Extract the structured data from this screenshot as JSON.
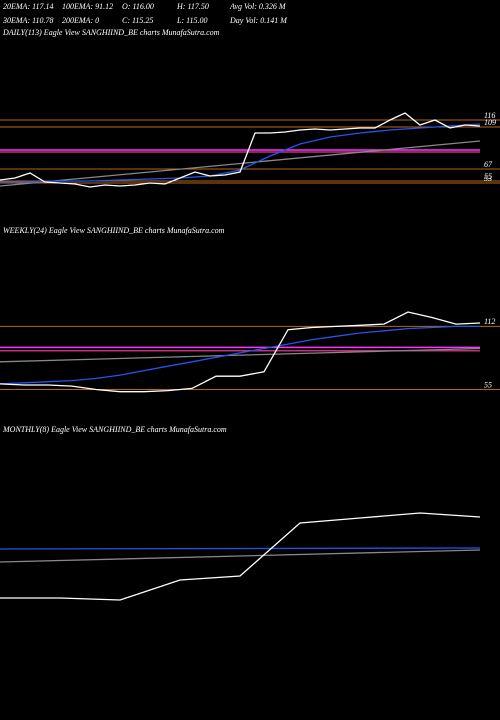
{
  "header": [
    "20EMA: 117.14",
    "100EMA: 91.12",
    "O: 116.00",
    "H: 117.50",
    "Avg Vol: 0.326 M",
    "30EMA: 110.78",
    "200EMA: 0",
    "C: 115.25",
    "L: 115.00",
    "Day Vol: 0.141 M"
  ],
  "chart_data": [
    {
      "type": "line",
      "title": "DAILY(113) Eagle  View  SANGHIIND_BE charts MunafaSutra.com",
      "ylim": [
        41,
        196
      ],
      "levels": [
        {
          "value": 116,
          "color": "#b8651a"
        },
        {
          "value": 109,
          "color": "#b8651a"
        },
        {
          "value": 67,
          "color": "#b8651a"
        },
        {
          "value": 55,
          "color": "#b8651a"
        },
        {
          "value": 53,
          "color": "#b8651a"
        }
      ],
      "bands": [
        {
          "value": 86,
          "color": "#ff33ff"
        },
        {
          "value": 84,
          "color": "#c0307a"
        }
      ],
      "series": [
        {
          "color": "#888888",
          "values": [
            50,
            95
          ]
        },
        {
          "color": "#2255ee",
          "values": [
            54,
            54,
            55,
            55,
            56,
            57,
            58,
            60,
            66,
            80,
            92,
            99,
            103,
            106,
            108,
            110,
            112
          ]
        },
        {
          "color": "#ffffff",
          "values": [
            56,
            58,
            63,
            54,
            53,
            52,
            49,
            51,
            50,
            51,
            53,
            52,
            58,
            64,
            60,
            61,
            64,
            103,
            103,
            104,
            106,
            107,
            106,
            107,
            108,
            108,
            116,
            123,
            111,
            116,
            108,
            111,
            110
          ]
        }
      ]
    },
    {
      "type": "line",
      "title": "WEEKLY(24) Eagle  View  SANGHIIND_BE charts MunafaSutra.com",
      "ylim": [
        50,
        190
      ],
      "levels": [
        {
          "value": 112,
          "color": "#b8651a"
        },
        {
          "value": 55,
          "color": "#b8651a"
        }
      ],
      "bands": [
        {
          "value": 93,
          "color": "#ff33ff"
        },
        {
          "value": 90,
          "color": "#c0307a"
        }
      ],
      "series": [
        {
          "color": "#888888",
          "values": [
            80,
            92
          ]
        },
        {
          "color": "#2255ee",
          "values": [
            60,
            61,
            62,
            63,
            65,
            68,
            72,
            76,
            80,
            84,
            88,
            92,
            96,
            100,
            103,
            106,
            108,
            110,
            111,
            112,
            112
          ]
        },
        {
          "color": "#ffffff",
          "values": [
            60,
            59,
            59,
            58,
            55,
            53,
            53,
            54,
            56,
            67,
            67,
            71,
            109,
            111,
            112,
            113,
            114,
            125,
            120,
            114,
            115
          ]
        }
      ]
    },
    {
      "type": "line",
      "title": "MONTHLY(8) Eagle  View  SANGHIIND_BE charts MunafaSutra.com",
      "ylim": [
        0,
        270
      ],
      "levels": [],
      "bands": [],
      "series": [
        {
          "color": "#888888",
          "values": [
            148,
            160
          ]
        },
        {
          "color": "#2255ee",
          "values": [
            161,
            162
          ]
        },
        {
          "color": "#ffffff",
          "values": [
            112,
            112,
            110,
            130,
            134,
            187,
            192,
            197,
            193
          ]
        }
      ]
    }
  ]
}
